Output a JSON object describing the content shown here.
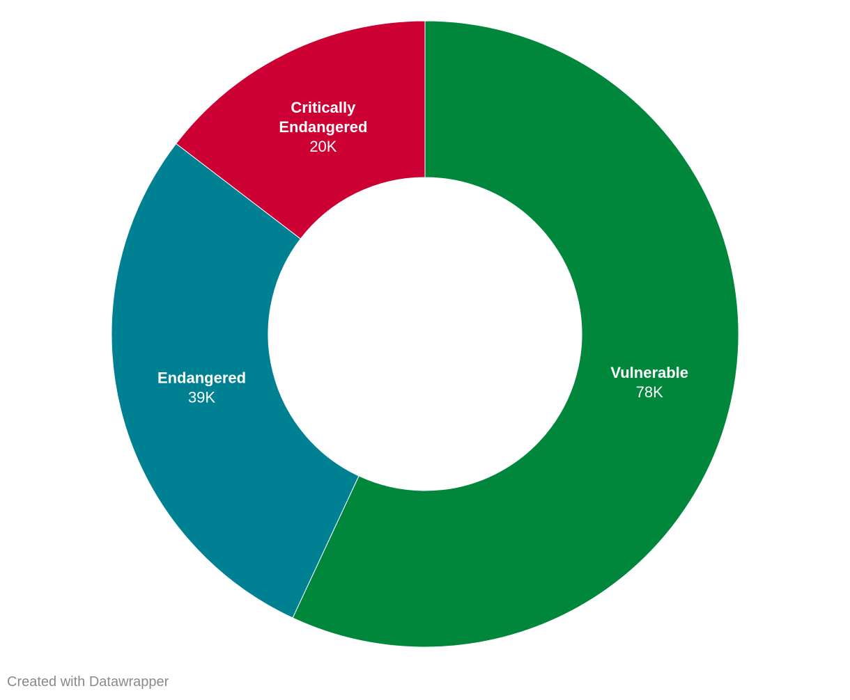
{
  "chart_data": {
    "type": "pie",
    "donut": true,
    "start": "top",
    "direction": "clockwise",
    "slices": [
      {
        "name": "Vulnerable",
        "value": 78,
        "value_label": "78K",
        "color": "#00873b"
      },
      {
        "name": "Endangered",
        "value": 39,
        "value_label": "39K",
        "color": "#008193"
      },
      {
        "name": "Critically Endangered",
        "name_lines": [
          "Critically",
          "Endangered"
        ],
        "value": 20,
        "value_label": "20K",
        "color": "#cc0033"
      }
    ]
  },
  "footer": {
    "credit": "Created with Datawrapper"
  }
}
